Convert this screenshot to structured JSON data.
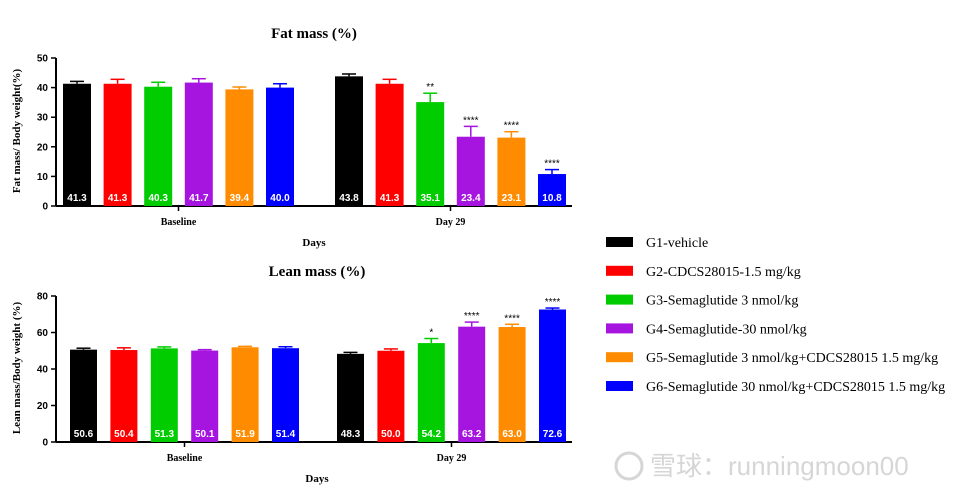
{
  "colors": {
    "G1": "#000000",
    "G2": "#ff0000",
    "G3": "#00cc00",
    "G4": "#a614e0",
    "G5": "#ff8c00",
    "G6": "#0000ff"
  },
  "legend": {
    "items": [
      {
        "key": "G1",
        "label": "G1-vehicle"
      },
      {
        "key": "G2",
        "label": "G2-CDCS28015-1.5 mg/kg"
      },
      {
        "key": "G3",
        "label": "G3-Semaglutide 3 nmol/kg"
      },
      {
        "key": "G4",
        "label": "G4-Semaglutide-30 nmol/kg"
      },
      {
        "key": "G5",
        "label": "G5-Semaglutide 3 nmol/kg+CDCS28015 1.5 mg/kg"
      },
      {
        "key": "G6",
        "label": "G6-Semaglutide 30 nmol/kg+CDCS28015 1.5 mg/kg"
      }
    ]
  },
  "watermark": "雪球：runningmoon00",
  "chart_data": [
    {
      "type": "bar",
      "title": "Fat mass (%)",
      "xlabel": "Days",
      "ylabel": "Fat mass/ Body weight(%)",
      "ylim": [
        0,
        50
      ],
      "yticks": [
        0,
        10,
        20,
        30,
        40,
        50
      ],
      "groups": [
        "Baseline",
        "Day 29"
      ],
      "series": [
        {
          "key": "G1",
          "values": [
            41.3,
            43.8
          ],
          "err": [
            0.8,
            0.8
          ],
          "sig": [
            "",
            ""
          ]
        },
        {
          "key": "G2",
          "values": [
            41.3,
            41.3
          ],
          "err": [
            1.5,
            1.5
          ],
          "sig": [
            "",
            ""
          ]
        },
        {
          "key": "G3",
          "values": [
            40.3,
            35.1
          ],
          "err": [
            1.5,
            3.0
          ],
          "sig": [
            "",
            "**"
          ]
        },
        {
          "key": "G4",
          "values": [
            41.7,
            23.4
          ],
          "err": [
            1.3,
            3.5
          ],
          "sig": [
            "",
            "****"
          ]
        },
        {
          "key": "G5",
          "values": [
            39.4,
            23.1
          ],
          "err": [
            0.8,
            2.0
          ],
          "sig": [
            "",
            "****"
          ]
        },
        {
          "key": "G6",
          "values": [
            40.0,
            10.8
          ],
          "err": [
            1.3,
            1.5
          ],
          "sig": [
            "",
            "****"
          ]
        }
      ]
    },
    {
      "type": "bar",
      "title": "Lean mass (%)",
      "xlabel": "Days",
      "ylabel": "Lean mass/Body weight (%)",
      "ylim": [
        0,
        80
      ],
      "yticks": [
        0,
        20,
        40,
        60,
        80
      ],
      "groups": [
        "Baseline",
        "Day 29"
      ],
      "series": [
        {
          "key": "G1",
          "values": [
            50.6,
            48.3
          ],
          "err": [
            0.8,
            0.8
          ],
          "sig": [
            "",
            ""
          ]
        },
        {
          "key": "G2",
          "values": [
            50.4,
            50.0
          ],
          "err": [
            1.2,
            1.0
          ],
          "sig": [
            "",
            ""
          ]
        },
        {
          "key": "G3",
          "values": [
            51.3,
            54.2
          ],
          "err": [
            0.8,
            2.5
          ],
          "sig": [
            "",
            "*"
          ]
        },
        {
          "key": "G4",
          "values": [
            50.1,
            63.2
          ],
          "err": [
            0.5,
            2.5
          ],
          "sig": [
            "",
            "****"
          ]
        },
        {
          "key": "G5",
          "values": [
            51.9,
            63.0
          ],
          "err": [
            0.5,
            1.5
          ],
          "sig": [
            "",
            "****"
          ]
        },
        {
          "key": "G6",
          "values": [
            51.4,
            72.6
          ],
          "err": [
            0.8,
            0.8
          ],
          "sig": [
            "",
            "****"
          ]
        }
      ]
    }
  ]
}
